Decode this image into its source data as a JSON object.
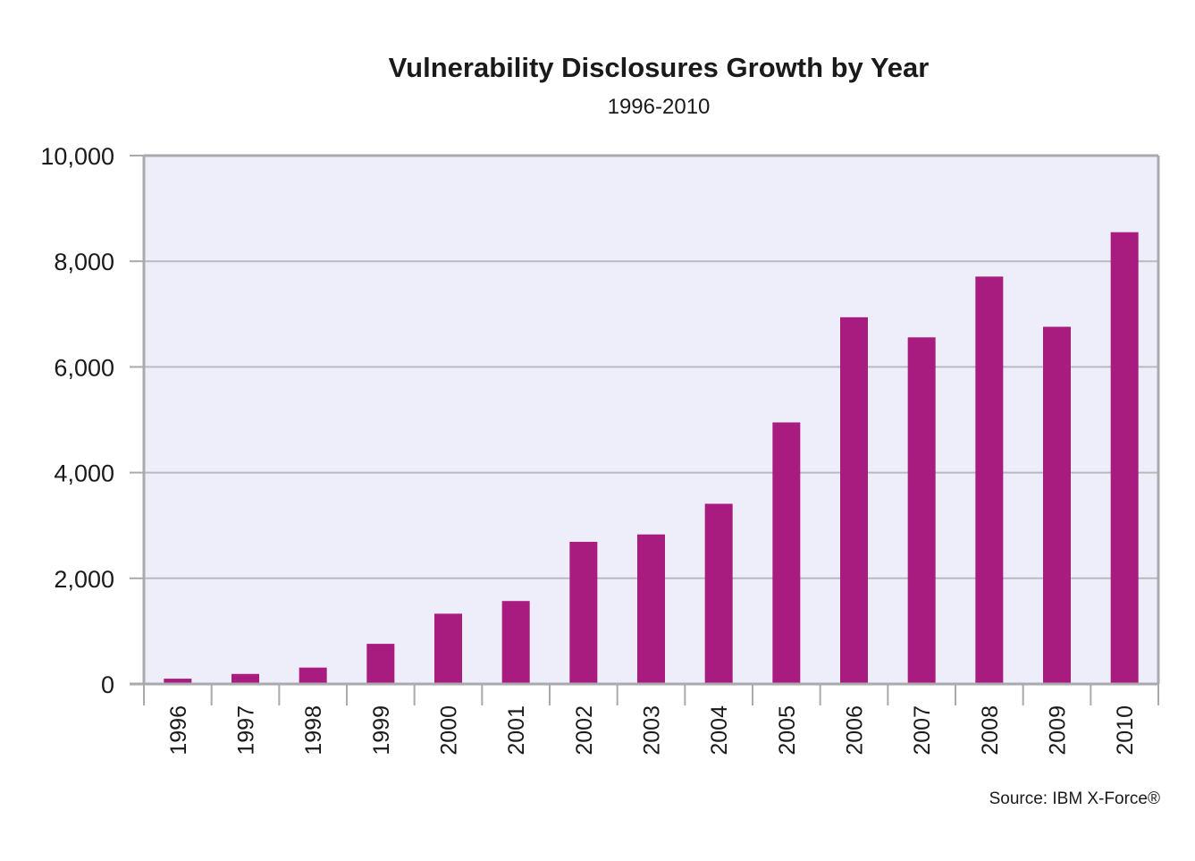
{
  "chart_data": {
    "type": "bar",
    "title": "Vulnerability Disclosures Growth by Year",
    "subtitle": "1996-2010",
    "xlabel": "",
    "ylabel": "",
    "categories": [
      "1996",
      "1997",
      "1998",
      "1999",
      "2000",
      "2001",
      "2002",
      "2003",
      "2004",
      "2005",
      "2006",
      "2007",
      "2008",
      "2009",
      "2010"
    ],
    "values": [
      100,
      190,
      310,
      760,
      1330,
      1570,
      2690,
      2830,
      3410,
      4950,
      6940,
      6560,
      7710,
      6760,
      8550
    ],
    "ylim": [
      0,
      10000
    ],
    "yticks": [
      0,
      2000,
      4000,
      6000,
      8000,
      10000
    ],
    "ytick_labels": [
      "0",
      "2,000",
      "4,000",
      "6,000",
      "8,000",
      "10,000"
    ],
    "grid": true,
    "source": "Source: IBM X-Force®"
  },
  "colors": {
    "bar": "#a81c80",
    "plot_background": "#edeef9",
    "gridline": "#b9b9c0",
    "frame": "#a9a9ae"
  }
}
